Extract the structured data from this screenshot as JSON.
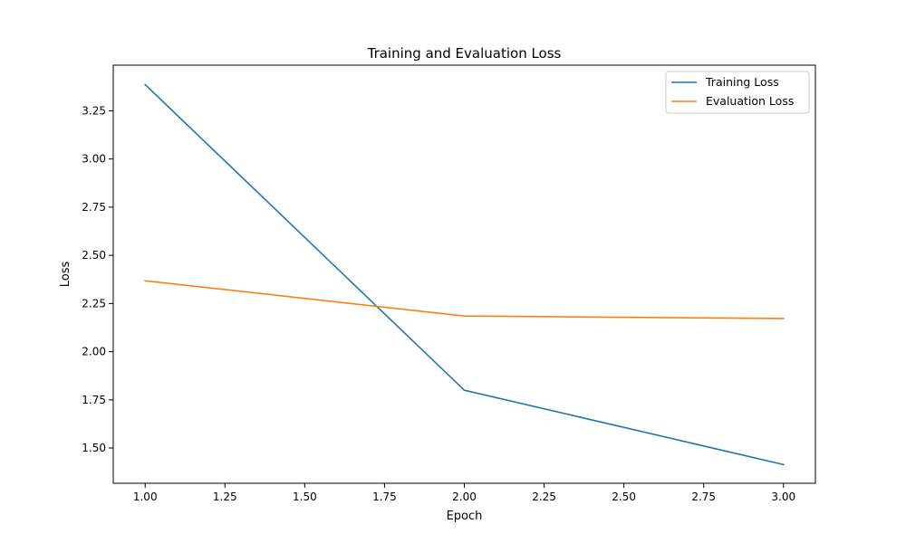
{
  "chart_data": {
    "type": "line",
    "title": "Training and Evaluation Loss",
    "xlabel": "Epoch",
    "ylabel": "Loss",
    "xlim": [
      0.9,
      3.1
    ],
    "ylim": [
      1.317,
      3.487
    ],
    "x_ticks": [
      1.0,
      1.25,
      1.5,
      1.75,
      2.0,
      2.25,
      2.5,
      2.75,
      3.0
    ],
    "x_tick_labels": [
      "1.00",
      "1.25",
      "1.50",
      "1.75",
      "2.00",
      "2.25",
      "2.50",
      "2.75",
      "3.00"
    ],
    "y_ticks": [
      1.5,
      1.75,
      2.0,
      2.25,
      2.5,
      2.75,
      3.0,
      3.25
    ],
    "y_tick_labels": [
      "1.50",
      "1.75",
      "2.00",
      "2.25",
      "2.50",
      "2.75",
      "3.00",
      "3.25"
    ],
    "x": [
      1,
      2,
      3
    ],
    "series": [
      {
        "name": "Training Loss",
        "values": [
          3.386,
          1.8,
          1.414
        ],
        "color": "#1f77b4"
      },
      {
        "name": "Evaluation Loss",
        "values": [
          2.368,
          2.185,
          2.172
        ],
        "color": "#ff7f0e"
      }
    ],
    "grid": false,
    "legend_position": "top-right"
  }
}
